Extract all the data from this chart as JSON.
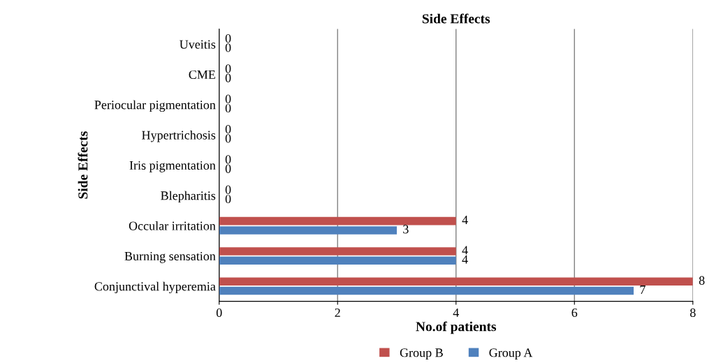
{
  "chart_data": {
    "type": "bar",
    "orientation": "horizontal",
    "title": "Side Effects",
    "xlabel": "No.of patients",
    "ylabel": "Side Effects",
    "categories": [
      "Uveitis",
      "CME",
      "Periocular pigmentation",
      "Hypertrichosis",
      "Iris pigmentation",
      "Blepharitis",
      "Occular irritation",
      "Burning sensation",
      "Conjunctival hyperemia"
    ],
    "series": [
      {
        "name": "Group B",
        "color": "#c0504d",
        "values": [
          0,
          0,
          0,
          0,
          0,
          0,
          4,
          4,
          8
        ]
      },
      {
        "name": "Group A",
        "color": "#4f81bd",
        "values": [
          0,
          0,
          0,
          0,
          0,
          0,
          3,
          4,
          7
        ]
      }
    ],
    "xlim": [
      0,
      8
    ],
    "xticks": [
      0,
      2,
      4,
      6,
      8
    ],
    "grid": "x",
    "legend": "bottom",
    "data_labels": true
  }
}
